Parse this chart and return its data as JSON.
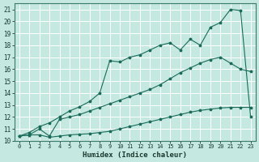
{
  "xlabel": "Humidex (Indice chaleur)",
  "bg_color": "#c5e8e0",
  "grid_color": "#ffffff",
  "line_color": "#1a6b5a",
  "xlim": [
    -0.5,
    23.5
  ],
  "ylim": [
    10,
    21.5
  ],
  "xticks": [
    0,
    1,
    2,
    3,
    4,
    5,
    6,
    7,
    8,
    9,
    10,
    11,
    12,
    13,
    14,
    15,
    16,
    17,
    18,
    19,
    20,
    21,
    22,
    23
  ],
  "yticks": [
    10,
    11,
    12,
    13,
    14,
    15,
    16,
    17,
    18,
    19,
    20,
    21
  ],
  "c1x": [
    0,
    1,
    2,
    3,
    4,
    5,
    6,
    7,
    8,
    9,
    10,
    11,
    12,
    13,
    14,
    15,
    16,
    17,
    18,
    19,
    20,
    21,
    22,
    23
  ],
  "c1y": [
    10.4,
    10.5,
    10.5,
    10.3,
    10.4,
    10.5,
    10.55,
    10.6,
    10.7,
    10.8,
    11.0,
    11.2,
    11.4,
    11.6,
    11.8,
    12.0,
    12.2,
    12.4,
    12.55,
    12.65,
    12.75,
    12.8,
    12.8,
    12.8
  ],
  "c2x": [
    0,
    1,
    2,
    3,
    4,
    5,
    6,
    7,
    8,
    9,
    10,
    11,
    12,
    13,
    14,
    15,
    16,
    17,
    18,
    19,
    20,
    21,
    22,
    23
  ],
  "c2y": [
    10.4,
    10.5,
    11.0,
    10.4,
    11.8,
    12.0,
    12.2,
    12.5,
    12.8,
    13.1,
    13.4,
    13.7,
    14.0,
    14.3,
    14.7,
    15.2,
    15.7,
    16.1,
    16.5,
    16.8,
    17.0,
    16.5,
    16.0,
    15.8
  ],
  "c3x": [
    0,
    1,
    2,
    3,
    4,
    5,
    6,
    7,
    8,
    9,
    10,
    11,
    12,
    13,
    14,
    15,
    16,
    17,
    18,
    19,
    20,
    21,
    22,
    23
  ],
  "c3y": [
    10.4,
    10.7,
    11.2,
    11.5,
    12.0,
    12.5,
    12.85,
    13.3,
    14.0,
    16.7,
    16.6,
    17.0,
    17.2,
    17.6,
    18.0,
    18.2,
    17.6,
    18.5,
    18.0,
    19.5,
    19.9,
    21.0,
    20.9,
    12.0
  ]
}
